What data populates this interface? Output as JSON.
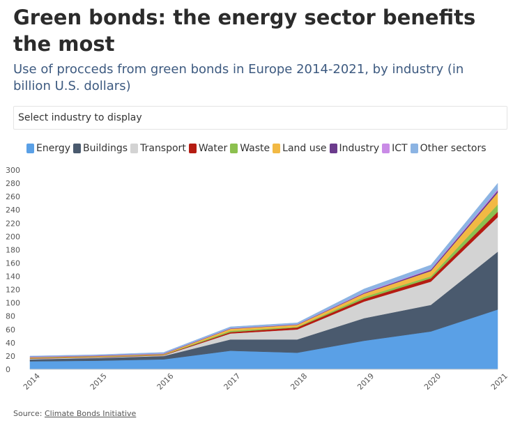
{
  "header": {
    "title": "Green bonds: the energy sector benefits the most",
    "subtitle": "Use of procceds from green bonds in Europe 2014-2021, by industry (in billion U.S. dollars)"
  },
  "select": {
    "label": "Select industry to display"
  },
  "footer": {
    "source_label": "Source:",
    "source_link": "Climate Bonds Initiative"
  },
  "chart_data": {
    "type": "area",
    "stacked": true,
    "x": [
      "2014",
      "2015",
      "2016",
      "2017",
      "2018",
      "2019",
      "2020",
      "2021"
    ],
    "ylim": [
      0,
      300
    ],
    "yticks": [
      0,
      20,
      40,
      60,
      80,
      100,
      120,
      140,
      160,
      180,
      200,
      220,
      240,
      260,
      280,
      300
    ],
    "grid": false,
    "legend_position": "top",
    "series": [
      {
        "name": "Energy",
        "color": "#5aa0e6",
        "values": [
          12,
          13,
          15,
          28,
          25,
          43,
          57,
          90
        ]
      },
      {
        "name": "Buildings",
        "color": "#4a5a6e",
        "values": [
          3,
          4,
          5,
          17,
          20,
          34,
          40,
          87
        ]
      },
      {
        "name": "Transport",
        "color": "#d3d3d3",
        "values": [
          1,
          1,
          1,
          9,
          15,
          25,
          35,
          52
        ]
      },
      {
        "name": "Water",
        "color": "#b51c12",
        "values": [
          0.5,
          0.5,
          0.5,
          2,
          3,
          4,
          5,
          8
        ]
      },
      {
        "name": "Waste",
        "color": "#8cc04f",
        "values": [
          0.5,
          0.5,
          0.5,
          2,
          1,
          3,
          3,
          11
        ]
      },
      {
        "name": "Land use",
        "color": "#f2b944",
        "values": [
          1,
          1,
          1,
          3,
          3,
          5,
          8,
          18
        ]
      },
      {
        "name": "Industry",
        "color": "#6b3b8c",
        "values": [
          0.5,
          0.5,
          0.5,
          0.5,
          0.5,
          1,
          2,
          3
        ]
      },
      {
        "name": "ICT",
        "color": "#c98be6",
        "values": [
          0.5,
          0.5,
          0.5,
          0.5,
          0.5,
          1,
          1,
          2
        ]
      },
      {
        "name": "Other sectors",
        "color": "#8cb4e3",
        "values": [
          1,
          1,
          1.5,
          2,
          2,
          5,
          6,
          9
        ]
      }
    ]
  }
}
